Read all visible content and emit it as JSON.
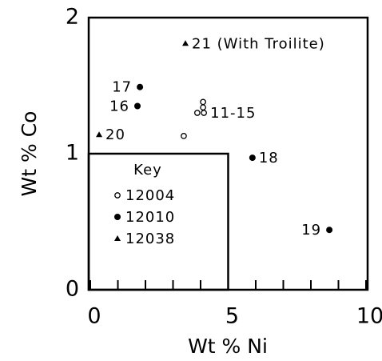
{
  "chart_data": {
    "type": "scatter",
    "x_label": "Wt % Ni",
    "y_label": "Wt % Co",
    "xlim": [
      0,
      10
    ],
    "ylim": [
      0,
      2
    ],
    "xticks": [
      0,
      5,
      10
    ],
    "yticks": [
      0,
      1,
      2
    ],
    "legend_title": "Key",
    "series": [
      {
        "name": "12004",
        "marker": "circle-open",
        "color": "#000000",
        "x": [
          3.39,
          4.09,
          4.09,
          3.88,
          4.12
        ],
        "values": [
          1.13,
          1.38,
          1.34,
          1.3,
          1.3
        ],
        "labels": [
          null,
          null,
          null,
          null,
          "11-15"
        ]
      },
      {
        "name": "12010",
        "marker": "circle",
        "color": "#000000",
        "x": [
          1.8,
          1.71,
          5.88,
          8.67
        ],
        "values": [
          1.49,
          1.35,
          0.97,
          0.44
        ],
        "labels": [
          "17",
          "16",
          "18",
          "19"
        ]
      },
      {
        "name": "12038",
        "marker": "triangle",
        "color": "#000000",
        "x": [
          3.45,
          0.32
        ],
        "values": [
          1.81,
          1.14
        ],
        "labels": [
          "21 (With Troilite)",
          "20"
        ]
      }
    ]
  }
}
